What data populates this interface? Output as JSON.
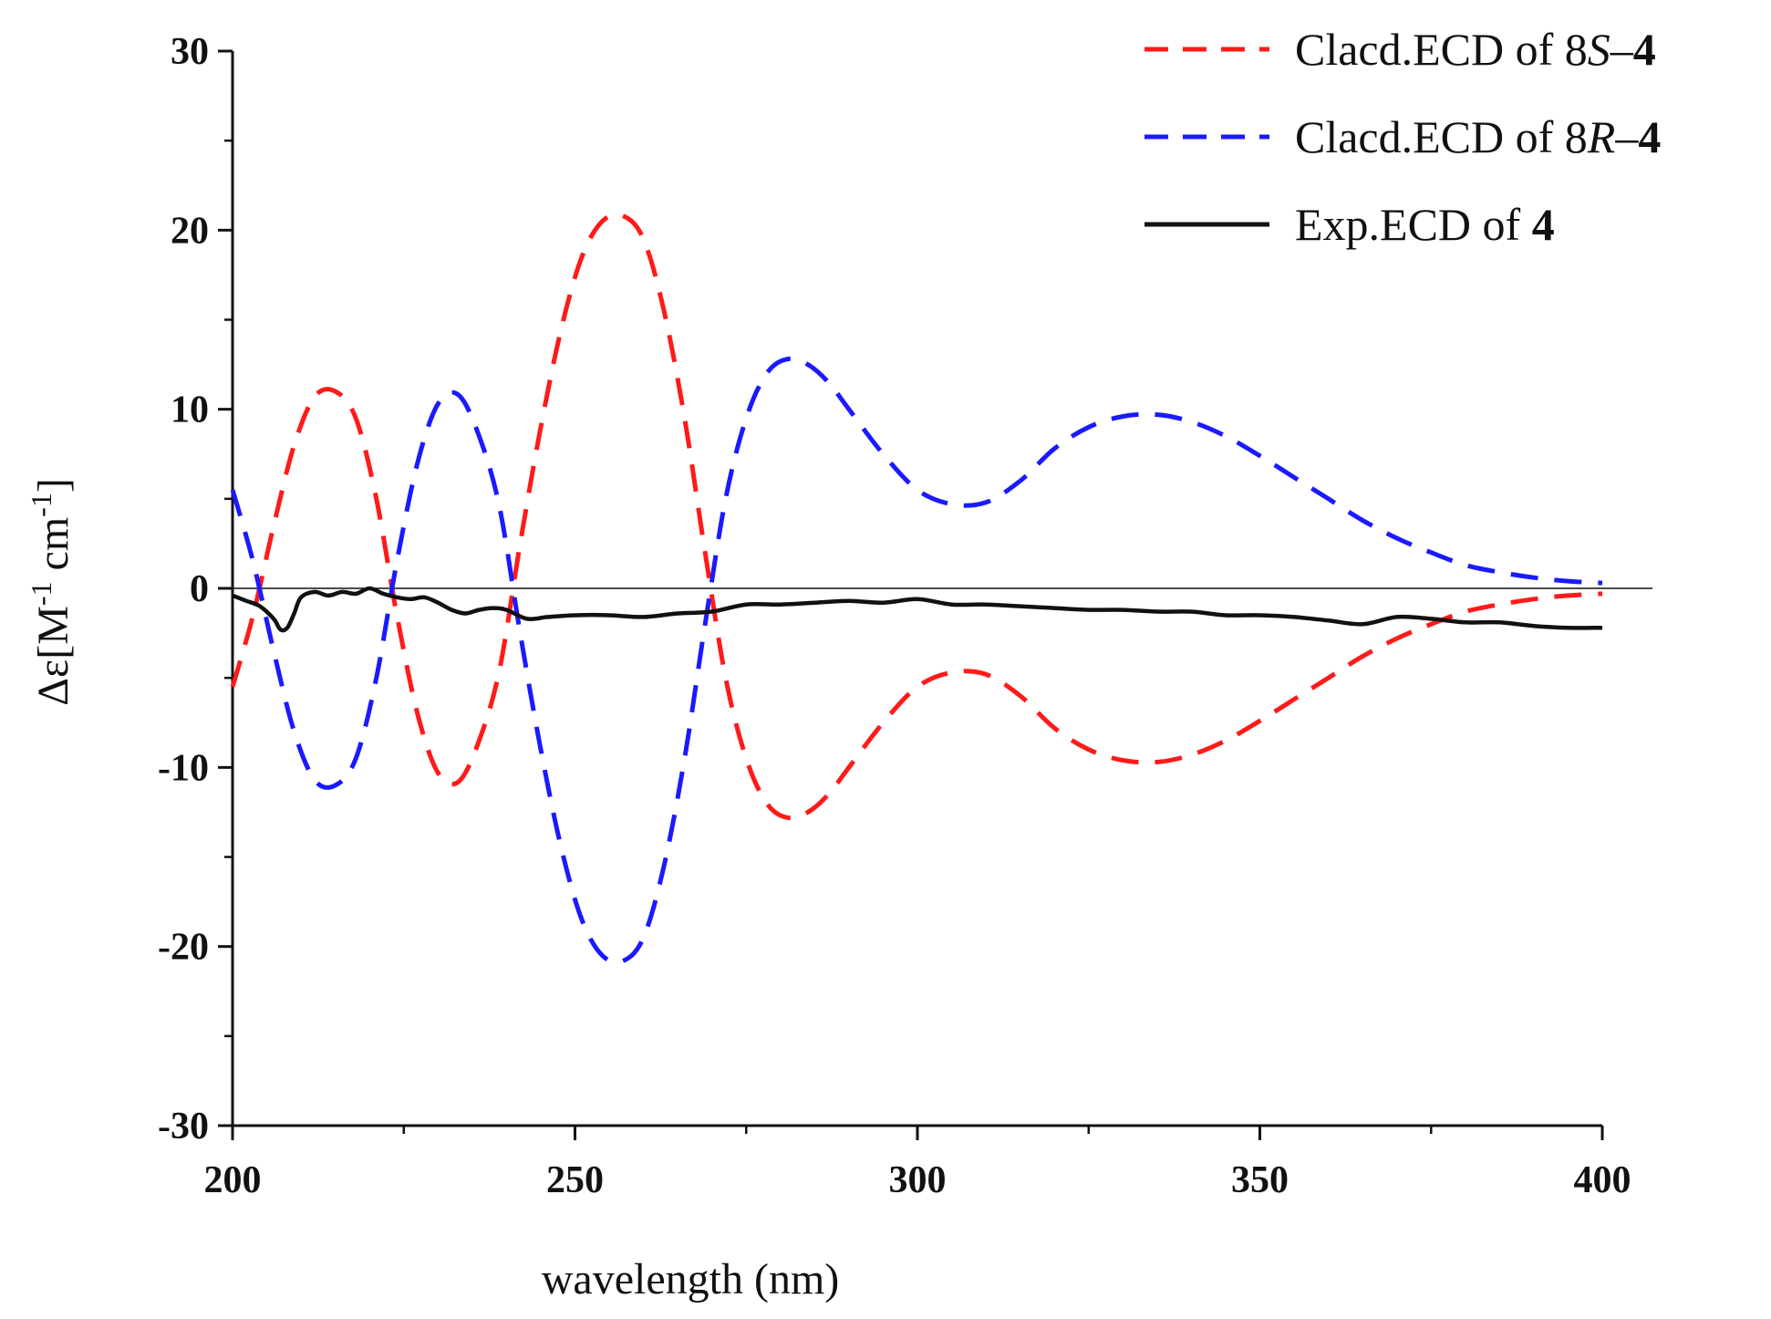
{
  "chart_data": {
    "type": "line",
    "title": "",
    "xlabel": "wavelength (nm)",
    "ylabel": "Δε[M-1 cm-1]",
    "ylabel_parts": {
      "symbol": "Δε",
      "open": "[",
      "unit1": "M",
      "sup1": "-1",
      "unit2": " cm",
      "sup2": "-1",
      "close": "]"
    },
    "xlim": [
      200,
      400
    ],
    "ylim": [
      -30,
      30
    ],
    "xticks": [
      200,
      250,
      300,
      350,
      400
    ],
    "xtick_labels": [
      "200",
      "250",
      "300",
      "350",
      "400"
    ],
    "yticks": [
      -30,
      -20,
      -10,
      0,
      10,
      20,
      30
    ],
    "ytick_labels": [
      "-30",
      "-20",
      "-10",
      "0",
      "10",
      "20",
      "30"
    ],
    "zero_line": true,
    "grid": false,
    "legend_position": "top-right",
    "series": [
      {
        "name": "Clacd.ECD of 8S–4",
        "legend": {
          "prefix": "Clacd.ECD of 8",
          "italic": "S",
          "dash": "–",
          "bold": "4"
        },
        "color": "#ff1a1a",
        "style": "dashed",
        "x": [
          200,
          203,
          206,
          209,
          212,
          215,
          218,
          221,
          224,
          227,
          230,
          233,
          236,
          239,
          242,
          245,
          248,
          251,
          254,
          257,
          260,
          263,
          266,
          269,
          272,
          275,
          278,
          281,
          284,
          287,
          290,
          295,
          300,
          305,
          310,
          315,
          320,
          325,
          330,
          335,
          340,
          345,
          350,
          355,
          360,
          365,
          370,
          375,
          380,
          385,
          390,
          395,
          400
        ],
        "y": [
          -5.5,
          -1.5,
          3.5,
          8.0,
          10.7,
          11.0,
          9.5,
          5.0,
          -1.5,
          -7.0,
          -10.3,
          -10.8,
          -8.5,
          -4.5,
          2.5,
          9.0,
          14.5,
          18.5,
          20.5,
          20.8,
          19.5,
          15.5,
          9.5,
          2.0,
          -5.0,
          -9.5,
          -12.0,
          -12.8,
          -12.5,
          -11.5,
          -10.0,
          -7.5,
          -5.5,
          -4.7,
          -4.8,
          -6.0,
          -7.8,
          -9.0,
          -9.6,
          -9.7,
          -9.3,
          -8.5,
          -7.4,
          -6.2,
          -5.0,
          -3.8,
          -2.8,
          -2.0,
          -1.3,
          -0.9,
          -0.6,
          -0.4,
          -0.3
        ]
      },
      {
        "name": "Clacd.ECD of 8R–4",
        "legend": {
          "prefix": "Clacd.ECD of 8",
          "italic": "R",
          "dash": "–",
          "bold": "4"
        },
        "color": "#1a1aff",
        "style": "dashed",
        "x": [
          200,
          203,
          206,
          209,
          212,
          215,
          218,
          221,
          224,
          227,
          230,
          233,
          236,
          239,
          242,
          245,
          248,
          251,
          254,
          257,
          260,
          263,
          266,
          269,
          272,
          275,
          278,
          281,
          284,
          287,
          290,
          295,
          300,
          305,
          310,
          315,
          320,
          325,
          330,
          335,
          340,
          345,
          350,
          355,
          360,
          365,
          370,
          375,
          380,
          385,
          390,
          395,
          400
        ],
        "y": [
          5.5,
          1.5,
          -3.5,
          -8.0,
          -10.7,
          -11.0,
          -9.5,
          -5.0,
          1.5,
          7.0,
          10.3,
          10.8,
          8.5,
          4.5,
          -2.5,
          -9.0,
          -14.5,
          -18.5,
          -20.5,
          -20.8,
          -19.5,
          -15.5,
          -9.5,
          -2.0,
          5.0,
          9.5,
          12.0,
          12.8,
          12.5,
          11.5,
          10.0,
          7.5,
          5.5,
          4.7,
          4.8,
          6.0,
          7.8,
          9.0,
          9.6,
          9.7,
          9.3,
          8.5,
          7.4,
          6.2,
          5.0,
          3.8,
          2.8,
          2.0,
          1.3,
          0.9,
          0.6,
          0.4,
          0.3
        ]
      },
      {
        "name": "Exp.ECD of 4",
        "legend": {
          "prefix": "Exp.ECD of ",
          "italic": "",
          "dash": "",
          "bold": "4"
        },
        "color": "#111111",
        "style": "solid",
        "x": [
          200,
          202,
          204,
          206,
          207,
          208,
          209,
          210,
          212,
          214,
          216,
          218,
          220,
          222,
          224,
          226,
          228,
          230,
          232,
          234,
          236,
          238,
          240,
          243,
          246,
          250,
          255,
          260,
          265,
          270,
          275,
          280,
          285,
          290,
          295,
          300,
          305,
          310,
          315,
          320,
          325,
          330,
          335,
          340,
          345,
          350,
          355,
          360,
          365,
          370,
          375,
          380,
          385,
          390,
          395,
          400
        ],
        "y": [
          -0.4,
          -0.7,
          -1.0,
          -1.7,
          -2.3,
          -2.2,
          -1.4,
          -0.5,
          -0.2,
          -0.4,
          -0.2,
          -0.3,
          0.0,
          -0.3,
          -0.5,
          -0.6,
          -0.5,
          -0.8,
          -1.2,
          -1.4,
          -1.2,
          -1.1,
          -1.2,
          -1.7,
          -1.6,
          -1.5,
          -1.5,
          -1.6,
          -1.4,
          -1.3,
          -0.9,
          -0.9,
          -0.8,
          -0.7,
          -0.8,
          -0.6,
          -0.9,
          -0.9,
          -1.0,
          -1.1,
          -1.2,
          -1.2,
          -1.3,
          -1.3,
          -1.5,
          -1.5,
          -1.6,
          -1.8,
          -2.0,
          -1.6,
          -1.7,
          -1.9,
          -1.9,
          -2.1,
          -2.2,
          -2.2
        ]
      }
    ]
  }
}
